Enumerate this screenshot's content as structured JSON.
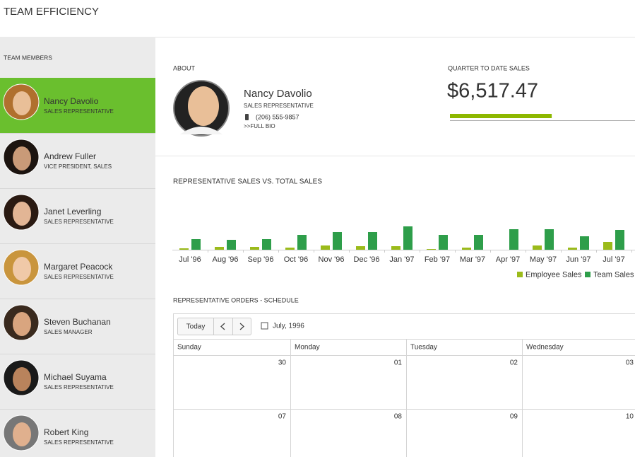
{
  "header": {
    "title": "TEAM EFFICIENCY"
  },
  "sidebar": {
    "heading": "TEAM MEMBERS",
    "selected": 0,
    "members": [
      {
        "name": "Nancy Davolio",
        "title": "SALES REPRESENTATIVE"
      },
      {
        "name": "Andrew Fuller",
        "title": "VICE PRESIDENT, SALES"
      },
      {
        "name": "Janet Leverling",
        "title": "SALES REPRESENTATIVE"
      },
      {
        "name": "Margaret Peacock",
        "title": "SALES REPRESENTATIVE"
      },
      {
        "name": "Steven Buchanan",
        "title": "SALES MANAGER"
      },
      {
        "name": "Michael Suyama",
        "title": "SALES REPRESENTATIVE"
      },
      {
        "name": "Robert King",
        "title": "SALES REPRESENTATIVE"
      }
    ]
  },
  "about": {
    "heading": "ABOUT",
    "name": "Nancy Davolio",
    "title": "SALES REPRESENTATIVE",
    "phone": "(206) 555-9857",
    "link": ">>FULL BIO"
  },
  "quarter_sales": {
    "heading": "QUARTER TO DATE SALES",
    "amount": "$6,517.47",
    "progress": 0.55
  },
  "chart_data": {
    "type": "bar",
    "title": "REPRESENTATIVE SALES VS. TOTAL SALES",
    "categories": [
      "Jul '96",
      "Aug '96",
      "Sep '96",
      "Oct '96",
      "Nov '96",
      "Dec '96",
      "Jan '97",
      "Feb '97",
      "Mar '97",
      "Apr '97",
      "May '97",
      "Jun '97",
      "Jul '97"
    ],
    "series": [
      {
        "name": "Employee Sales",
        "color": "#9bbb1a",
        "values": [
          2,
          4,
          4,
          3,
          6,
          5,
          5,
          1,
          3,
          0,
          6,
          3,
          11
        ]
      },
      {
        "name": "Team Sales",
        "color": "#2e9e4a",
        "values": [
          15,
          14,
          15,
          21,
          25,
          25,
          33,
          21,
          21,
          29,
          29,
          19,
          28
        ]
      }
    ]
  },
  "schedule": {
    "heading": "REPRESENTATIVE ORDERS - SCHEDULE",
    "today": "Today",
    "period": "July, 1996",
    "days": [
      "Sunday",
      "Monday",
      "Tuesday",
      "Wednesday"
    ],
    "weeks": [
      [
        "30",
        "01",
        "02",
        "03"
      ],
      [
        "07",
        "08",
        "09",
        "10"
      ]
    ]
  }
}
